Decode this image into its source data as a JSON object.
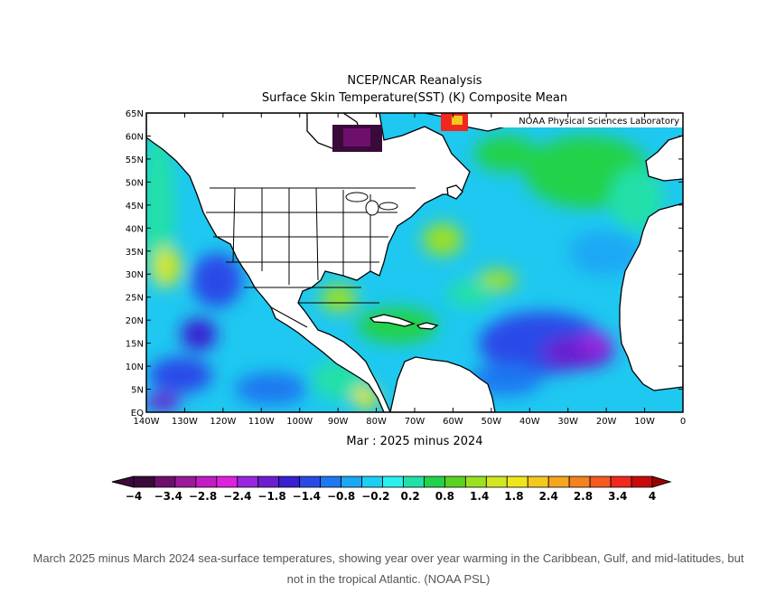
{
  "map": {
    "title_line1": "NCEP/NCAR Reanalysis",
    "title_line2": "Surface Skin Temperature(SST) (K) Composite Mean",
    "credit": "NOAA Physical Sciences Laboratory",
    "period_label": "Mar : 2025 minus 2024",
    "lat_labels": [
      "65N",
      "60N",
      "55N",
      "50N",
      "45N",
      "40N",
      "35N",
      "30N",
      "25N",
      "20N",
      "15N",
      "10N",
      "5N",
      "EQ"
    ],
    "lon_labels": [
      "140W",
      "130W",
      "120W",
      "110W",
      "100W",
      "90W",
      "80W",
      "70W",
      "60W",
      "50W",
      "40W",
      "30W",
      "20W",
      "10W",
      "0"
    ],
    "lat_range": [
      0,
      65
    ],
    "lon_range": [
      -140,
      0
    ]
  },
  "colorbar": {
    "colors": [
      "#3a0a3a",
      "#6e0f6e",
      "#9b1a9b",
      "#c21dc2",
      "#dd22dd",
      "#9a26e0",
      "#6a1fcf",
      "#3a1fd0",
      "#2a4ae8",
      "#1e78f0",
      "#1aa8f5",
      "#1ecff5",
      "#2af0f0",
      "#22e0a8",
      "#22d24a",
      "#5ad222",
      "#9ce022",
      "#d2e622",
      "#f0e61e",
      "#f5c81e",
      "#f5a51e",
      "#f5821e",
      "#f55a1e",
      "#f0281e",
      "#c80a0a"
    ],
    "tick_labels": [
      "−4",
      "−3.4",
      "−2.8",
      "−2.4",
      "−1.8",
      "−1.4",
      "−0.8",
      "−0.2",
      "0.2",
      "0.8",
      "1.4",
      "1.8",
      "2.4",
      "2.8",
      "3.4",
      "4"
    ]
  },
  "caption": "March 2025 minus March 2024 sea-surface temperatures, showing year over year warming in the Caribbean, Gulf, and mid-latitudes, but not in the tropical Atlantic. (NOAA PSL)"
}
